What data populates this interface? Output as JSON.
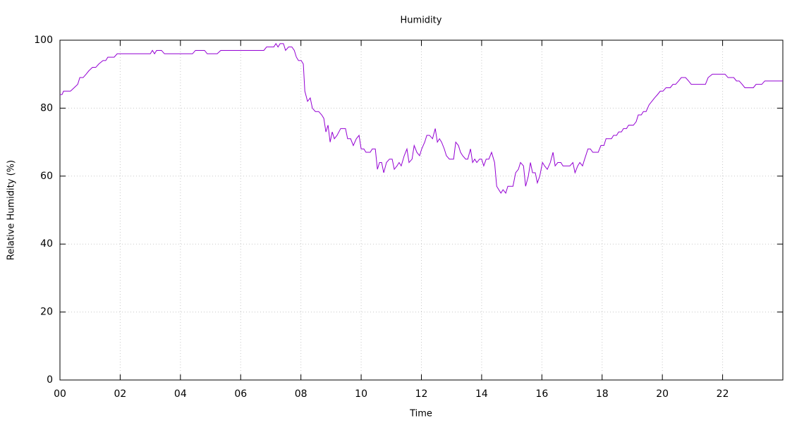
{
  "chart_data": {
    "type": "line",
    "title": "Humidity",
    "x_label": "Time",
    "y_label": "Relative Humidity (%)",
    "xlim": [
      0,
      24
    ],
    "xticks": [
      {
        "value": 0,
        "label": "00"
      },
      {
        "value": 2,
        "label": "02"
      },
      {
        "value": 4,
        "label": "04"
      },
      {
        "value": 6,
        "label": "06"
      },
      {
        "value": 8,
        "label": "08"
      },
      {
        "value": 10,
        "label": "10"
      },
      {
        "value": 12,
        "label": "12"
      },
      {
        "value": 14,
        "label": "14"
      },
      {
        "value": 16,
        "label": "16"
      },
      {
        "value": 18,
        "label": "18"
      },
      {
        "value": 20,
        "label": "20"
      },
      {
        "value": 22,
        "label": "22"
      }
    ],
    "ylim": [
      0,
      100
    ],
    "yticks": [
      0,
      20,
      40,
      60,
      80,
      100
    ],
    "grid": true,
    "series": [
      {
        "color": "#9400d3",
        "x": [
          0,
          0.07,
          0.12,
          0.35,
          0.47,
          0.59,
          0.66,
          0.77,
          0.87,
          0.96,
          1.08,
          1.19,
          1.29,
          1.43,
          1.52,
          1.59,
          1.8,
          1.9,
          3.0,
          3.07,
          3.14,
          3.21,
          3.37,
          3.47,
          4.4,
          4.5,
          4.8,
          4.89,
          5.22,
          5.34,
          6.77,
          6.86,
          7.1,
          7.17,
          7.24,
          7.31,
          7.42,
          7.49,
          7.59,
          7.7,
          7.78,
          7.85,
          7.92,
          8.01,
          8.08,
          8.13,
          8.22,
          8.31,
          8.38,
          8.48,
          8.59,
          8.69,
          8.76,
          8.83,
          8.9,
          8.97,
          9.04,
          9.11,
          9.2,
          9.32,
          9.48,
          9.55,
          9.65,
          9.74,
          9.84,
          9.93,
          10.0,
          10.09,
          10.16,
          10.3,
          10.37,
          10.47,
          10.54,
          10.61,
          10.68,
          10.75,
          10.84,
          10.94,
          11.03,
          11.1,
          11.19,
          11.26,
          11.33,
          11.43,
          11.52,
          11.59,
          11.69,
          11.76,
          11.85,
          11.94,
          12.01,
          12.11,
          12.18,
          12.27,
          12.37,
          12.46,
          12.53,
          12.6,
          12.67,
          12.76,
          12.83,
          12.93,
          13.07,
          13.14,
          13.23,
          13.3,
          13.37,
          13.47,
          13.54,
          13.63,
          13.7,
          13.77,
          13.84,
          13.93,
          14.0,
          14.07,
          14.15,
          14.24,
          14.33,
          14.43,
          14.5,
          14.57,
          14.64,
          14.71,
          14.8,
          14.87,
          15.04,
          15.13,
          15.22,
          15.29,
          15.39,
          15.46,
          15.55,
          15.62,
          15.69,
          15.78,
          15.85,
          15.93,
          16.02,
          16.09,
          16.18,
          16.28,
          16.37,
          16.44,
          16.53,
          16.63,
          16.7,
          16.93,
          17.03,
          17.1,
          17.19,
          17.26,
          17.35,
          17.42,
          17.53,
          17.61,
          17.69,
          17.87,
          17.96,
          18.06,
          18.13,
          18.31,
          18.38,
          18.48,
          18.55,
          18.64,
          18.71,
          18.81,
          18.88,
          19.04,
          19.13,
          19.2,
          19.3,
          19.37,
          19.46,
          19.56,
          19.65,
          19.74,
          19.84,
          19.93,
          20.02,
          20.12,
          20.26,
          20.35,
          20.44,
          20.54,
          20.63,
          20.77,
          20.87,
          20.96,
          21.43,
          21.52,
          21.66,
          22.08,
          22.18,
          22.37,
          22.46,
          22.55,
          22.65,
          22.74,
          23.02,
          23.11,
          23.3,
          23.4,
          24.0
        ],
        "values": [
          84,
          84,
          85,
          85,
          86,
          87,
          89,
          89,
          90,
          91,
          92,
          92,
          93,
          94,
          94,
          95,
          95,
          96,
          96,
          97,
          96,
          97,
          97,
          96,
          96,
          97,
          97,
          96,
          96,
          97,
          97,
          98,
          98,
          99,
          98,
          99,
          99,
          97,
          98,
          98,
          97,
          95,
          94,
          94,
          93,
          85,
          82,
          83,
          80,
          79,
          79,
          78,
          77,
          73,
          75,
          70,
          73,
          71,
          72,
          74,
          74,
          71,
          71,
          69,
          71,
          72,
          68,
          68,
          67,
          67,
          68,
          68,
          62,
          64,
          64,
          61,
          64,
          65,
          65,
          62,
          63,
          64,
          63,
          66,
          68,
          64,
          65,
          69,
          67,
          66,
          68,
          70,
          72,
          72,
          71,
          74,
          70,
          71,
          70,
          68,
          66,
          65,
          65,
          70,
          69,
          67,
          66,
          65,
          65,
          68,
          64,
          65,
          64,
          65,
          65,
          63,
          65,
          65,
          67,
          64,
          57,
          56,
          55,
          56,
          55,
          57,
          57,
          61,
          62,
          64,
          63,
          57,
          60,
          64,
          61,
          61,
          58,
          60,
          64,
          63,
          62,
          64,
          67,
          63,
          64,
          64,
          63,
          63,
          64,
          61,
          63,
          64,
          63,
          65,
          68,
          68,
          67,
          67,
          69,
          69,
          71,
          71,
          72,
          72,
          73,
          73,
          74,
          74,
          75,
          75,
          76,
          78,
          78,
          79,
          79,
          81,
          82,
          83,
          84,
          85,
          85,
          86,
          86,
          87,
          87,
          88,
          89,
          89,
          88,
          87,
          87,
          89,
          90,
          90,
          89,
          89,
          88,
          88,
          87,
          86,
          86,
          87,
          87,
          88,
          88
        ]
      }
    ]
  }
}
